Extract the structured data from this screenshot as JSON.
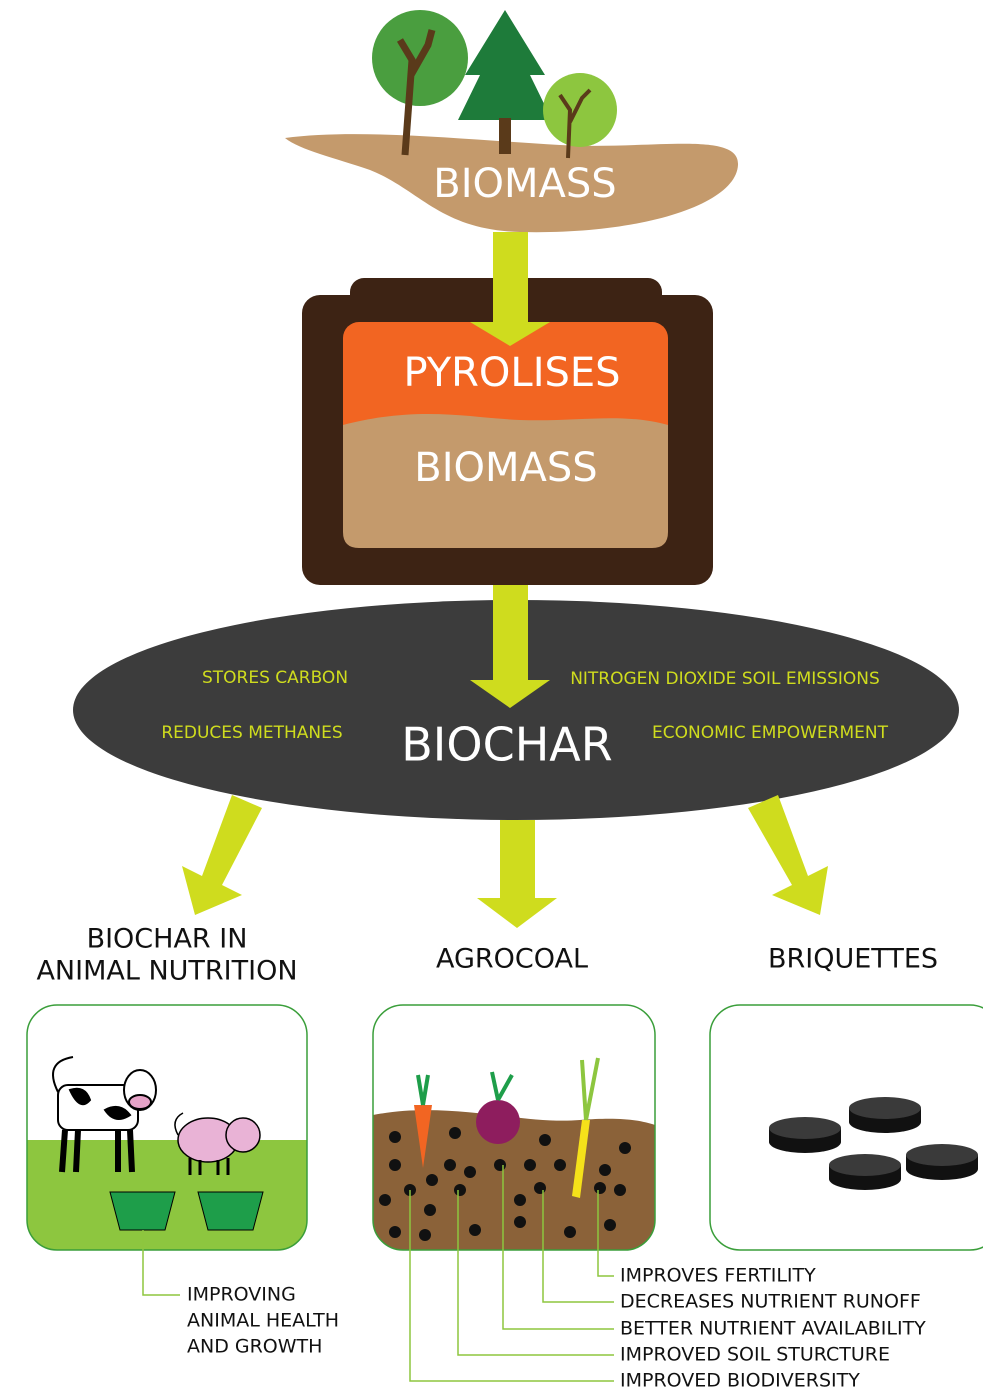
{
  "source": {
    "label": "BIOMASS"
  },
  "kiln": {
    "top": "PYROLISES",
    "bottom": "BIOMASS"
  },
  "biochar": {
    "label": "BIOCHAR",
    "benefits": [
      "STORES CARBON",
      "REDUCES METHANES",
      "NITROGEN DIOXIDE SOIL EMISSIONS",
      "ECONOMIC EMPOWERMENT"
    ]
  },
  "uses": [
    {
      "title": [
        "BIOCHAR IN",
        "ANIMAL NUTRITION"
      ],
      "notes": [
        "IMPROVING",
        "ANIMAL HEALTH",
        "AND GROWTH"
      ]
    },
    {
      "title": [
        "AGROCOAL"
      ],
      "notes": [
        "IMPROVES FERTILITY",
        "DECREASES NUTRIENT RUNOFF",
        "BETTER NUTRIENT AVAILABILITY",
        "IMPROVED SOIL STURCTURE",
        "IMPROVED BIODIVERSITY"
      ]
    },
    {
      "title": [
        "BRIQUETTES"
      ]
    }
  ]
}
